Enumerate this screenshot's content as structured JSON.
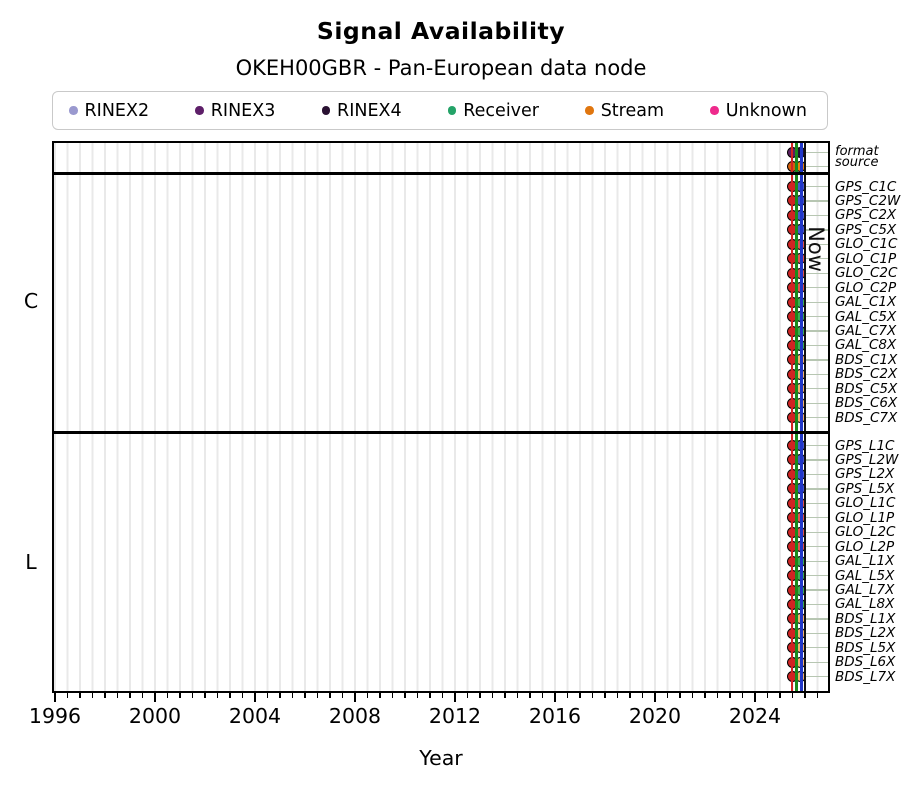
{
  "header": {
    "title": "Signal Availability",
    "subtitle": "OKEH00GBR - Pan-European data node"
  },
  "legend": {
    "items": [
      {
        "label": "RINEX2",
        "color": "#9a99cf"
      },
      {
        "label": "RINEX3",
        "color": "#5e1f69"
      },
      {
        "label": "RINEX4",
        "color": "#2a1132"
      },
      {
        "label": "Receiver",
        "color": "#24a368"
      },
      {
        "label": "Stream",
        "color": "#e0760f"
      },
      {
        "label": "Unknown",
        "color": "#ee2a8c"
      }
    ]
  },
  "axis": {
    "xlabel": "Year",
    "now_label": "Now",
    "tick_labels": [
      "1996",
      "2000",
      "2004",
      "2008",
      "2012",
      "2016",
      "2020",
      "2024"
    ]
  },
  "chart_data": {
    "type": "event-timeline",
    "title": "Signal Availability",
    "subtitle": "OKEH00GBR - Pan-European data node",
    "xlabel": "Year",
    "x_ticks": [
      1996,
      2000,
      2004,
      2008,
      2012,
      2016,
      2020,
      2024
    ],
    "minor_tick_interval_years": 0.5,
    "x_range": [
      1995.88,
      2027.0
    ],
    "grid": "vertical-half-year",
    "legend_position": "top",
    "legend_categories": [
      "RINEX2",
      "RINEX3",
      "RINEX4",
      "Receiver",
      "Stream",
      "Unknown"
    ],
    "marker_years": [
      2025.5,
      2025.8
    ],
    "vertical_lines": [
      {
        "name": "red-vline",
        "color": "#d32322",
        "year": 2025.48,
        "width": 2.0
      },
      {
        "name": "green-vline",
        "color": "#1b8a1b",
        "year": 2025.66,
        "width": 2.4
      },
      {
        "name": "blue-vline",
        "color": "#2137c8",
        "year": 2025.86,
        "width": 2.4
      },
      {
        "name": "now-line",
        "color": "#111111",
        "year": 2026.0,
        "width": 2.4
      }
    ],
    "top_rows": [
      {
        "label": "format",
        "colors": [
          "#5a2060",
          "#1e1033"
        ]
      },
      {
        "label": "source",
        "colors": [
          "#d2600d",
          "#e8830f"
        ]
      }
    ],
    "sections": [
      {
        "label": "C",
        "rows": [
          {
            "label": "GPS_C1C",
            "colors": [
              "#ce2524",
              "#4a57cf"
            ]
          },
          {
            "label": "GPS_C2W",
            "colors": [
              "#ce2524",
              "#4a57cf"
            ]
          },
          {
            "label": "GPS_C2X",
            "colors": [
              "#ce2524",
              "#4a57cf"
            ]
          },
          {
            "label": "GPS_C5X",
            "colors": [
              "#ce2524",
              "#4a57cf"
            ]
          },
          {
            "label": "GLO_C1C",
            "colors": [
              "#ce2524",
              "#e25352"
            ]
          },
          {
            "label": "GLO_C1P",
            "colors": [
              "#ce2524",
              "#e25352"
            ]
          },
          {
            "label": "GLO_C2C",
            "colors": [
              "#ce2524",
              "#e25352"
            ]
          },
          {
            "label": "GLO_C2P",
            "colors": [
              "#ce2524",
              "#e25352"
            ]
          },
          {
            "label": "GAL_C1X",
            "colors": [
              "#ce2524",
              "#3fae52"
            ]
          },
          {
            "label": "GAL_C5X",
            "colors": [
              "#ce2524",
              "#3fae52"
            ]
          },
          {
            "label": "GAL_C7X",
            "colors": [
              "#ce2524",
              "#3fae52"
            ]
          },
          {
            "label": "GAL_C8X",
            "colors": [
              "#ce2524",
              "#3fae52"
            ]
          },
          {
            "label": "BDS_C1X",
            "colors": [
              "#ce2524",
              "#f4b471"
            ]
          },
          {
            "label": "BDS_C2X",
            "colors": [
              "#ce2524",
              "#f4b471"
            ]
          },
          {
            "label": "BDS_C5X",
            "colors": [
              "#ce2524",
              "#f4b471"
            ]
          },
          {
            "label": "BDS_C6X",
            "colors": [
              "#ce2524",
              "#f4b471"
            ]
          },
          {
            "label": "BDS_C7X",
            "colors": [
              "#ce2524",
              "#f4b471"
            ]
          }
        ]
      },
      {
        "label": "L",
        "rows": [
          {
            "label": "GPS_L1C",
            "colors": [
              "#ce2524",
              "#4a57cf"
            ]
          },
          {
            "label": "GPS_L2W",
            "colors": [
              "#ce2524",
              "#4a57cf"
            ]
          },
          {
            "label": "GPS_L2X",
            "colors": [
              "#ce2524",
              "#4a57cf"
            ]
          },
          {
            "label": "GPS_L5X",
            "colors": [
              "#ce2524",
              "#4a57cf"
            ]
          },
          {
            "label": "GLO_L1C",
            "colors": [
              "#ce2524",
              "#e25352"
            ]
          },
          {
            "label": "GLO_L1P",
            "colors": [
              "#ce2524",
              "#e25352"
            ]
          },
          {
            "label": "GLO_L2C",
            "colors": [
              "#ce2524",
              "#e25352"
            ]
          },
          {
            "label": "GLO_L2P",
            "colors": [
              "#ce2524",
              "#e25352"
            ]
          },
          {
            "label": "GAL_L1X",
            "colors": [
              "#ce2524",
              "#3fae52"
            ]
          },
          {
            "label": "GAL_L5X",
            "colors": [
              "#ce2524",
              "#3fae52"
            ]
          },
          {
            "label": "GAL_L7X",
            "colors": [
              "#ce2524",
              "#3fae52"
            ]
          },
          {
            "label": "GAL_L8X",
            "colors": [
              "#ce2524",
              "#3fae52"
            ]
          },
          {
            "label": "BDS_L1X",
            "colors": [
              "#ce2524",
              "#f4b471"
            ]
          },
          {
            "label": "BDS_L2X",
            "colors": [
              "#ce2524",
              "#f4b471"
            ]
          },
          {
            "label": "BDS_L5X",
            "colors": [
              "#ce2524",
              "#f4b471"
            ]
          },
          {
            "label": "BDS_L6X",
            "colors": [
              "#ce2524",
              "#f4b471"
            ]
          },
          {
            "label": "BDS_L7X",
            "colors": [
              "#ce2524",
              "#f4b471"
            ]
          }
        ]
      }
    ]
  }
}
